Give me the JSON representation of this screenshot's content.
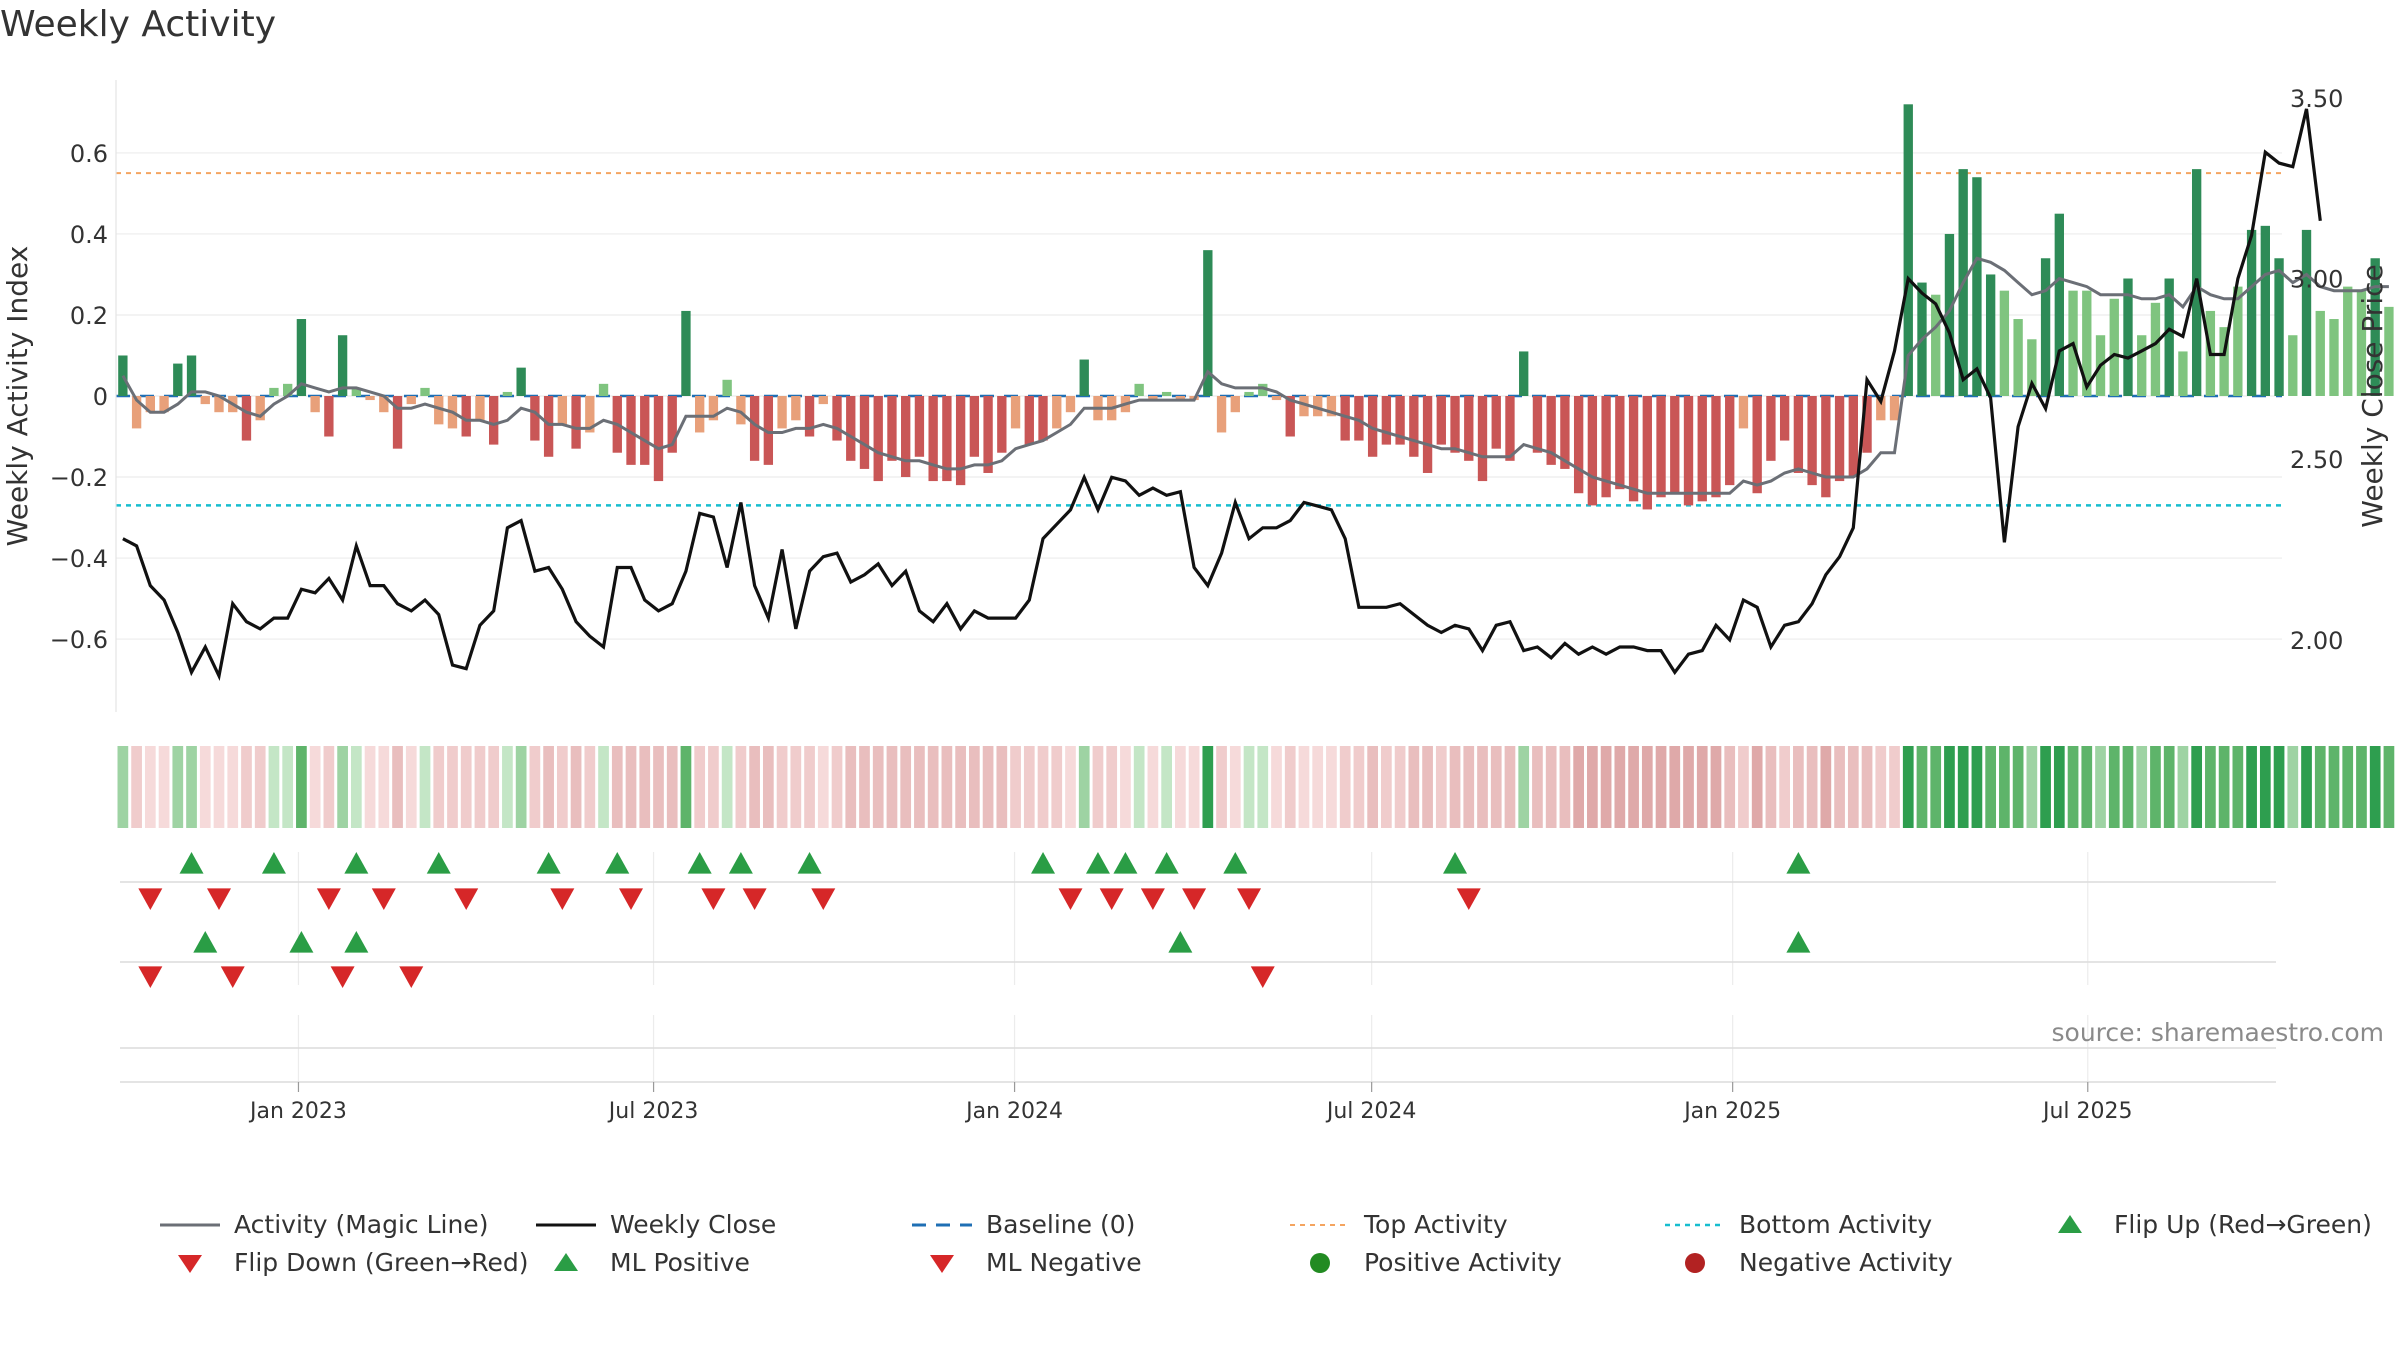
{
  "title": "Weekly Activity",
  "source": "source: sharemaestro.com",
  "colors": {
    "pos_strong": "#2e8b57",
    "pos_light": "#7fc47f",
    "neg_strong": "#c95656",
    "neg_light": "#e8a07a",
    "magic": "#6b6f76",
    "close": "#111111",
    "baseline": "#1f6fb4",
    "top": "#f4a460",
    "bottom": "#17becf",
    "up": "#2a9d45",
    "down": "#d62728",
    "pos_dot": "#228b22",
    "neg_dot": "#b22222"
  },
  "chart_data": {
    "type": "bar",
    "title": "Weekly Activity",
    "ylabel": "Weekly Activity Index",
    "y2label": "Weekly Close Price",
    "ylim": [
      -0.78,
      0.78
    ],
    "y2lim": [
      1.8,
      3.55
    ],
    "yticks": [
      0.6,
      0.4,
      0.2,
      0,
      -0.2,
      -0.4,
      -0.6
    ],
    "ytick_labels": [
      "0.6",
      "0.4",
      "0.2",
      "0",
      "−0.2",
      "−0.4",
      "−0.6"
    ],
    "y2ticks": [
      3.5,
      3.0,
      2.5,
      2.0
    ],
    "y2tick_labels": [
      "3.50",
      "3.00",
      "2.50",
      "2.00"
    ],
    "x_start": "2022-09-30",
    "x_end": "2025-10-08",
    "xticks": [
      {
        "date": "2023-01-01",
        "label": "Jan 2023"
      },
      {
        "date": "2023-07-01",
        "label": "Jul 2023"
      },
      {
        "date": "2024-01-01",
        "label": "Jan 2024"
      },
      {
        "date": "2024-07-01",
        "label": "Jul 2024"
      },
      {
        "date": "2025-01-01",
        "label": "Jan 2025"
      },
      {
        "date": "2025-07-01",
        "label": "Jul 2025"
      }
    ],
    "top_activity": 0.55,
    "bottom_activity": -0.27,
    "activity": [
      0.1,
      -0.08,
      -0.04,
      -0.04,
      0.08,
      0.1,
      -0.02,
      -0.04,
      -0.04,
      -0.11,
      -0.06,
      0.02,
      0.03,
      0.19,
      -0.04,
      -0.1,
      0.15,
      0.02,
      -0.01,
      -0.04,
      -0.13,
      -0.02,
      0.02,
      -0.07,
      -0.08,
      -0.1,
      -0.06,
      -0.12,
      0.01,
      0.07,
      -0.11,
      -0.15,
      -0.07,
      -0.13,
      -0.09,
      0.03,
      -0.14,
      -0.17,
      -0.17,
      -0.21,
      -0.14,
      0.21,
      -0.09,
      -0.06,
      0.04,
      -0.07,
      -0.16,
      -0.17,
      -0.08,
      -0.06,
      -0.1,
      -0.02,
      -0.11,
      -0.16,
      -0.18,
      -0.21,
      -0.16,
      -0.2,
      -0.15,
      -0.21,
      -0.21,
      -0.22,
      -0.15,
      -0.19,
      -0.14,
      -0.08,
      -0.12,
      -0.11,
      -0.08,
      -0.04,
      0.09,
      -0.06,
      -0.06,
      -0.04,
      0.03,
      -0.01,
      0.01,
      -0.01,
      -0.01,
      0.36,
      -0.09,
      -0.04,
      0.01,
      0.03,
      -0.01,
      -0.1,
      -0.05,
      -0.05,
      -0.05,
      -0.11,
      -0.11,
      -0.15,
      -0.12,
      -0.12,
      -0.15,
      -0.19,
      -0.12,
      -0.14,
      -0.16,
      -0.21,
      -0.13,
      -0.16,
      0.11,
      -0.14,
      -0.17,
      -0.18,
      -0.24,
      -0.27,
      -0.25,
      -0.23,
      -0.26,
      -0.28,
      -0.25,
      -0.24,
      -0.27,
      -0.26,
      -0.25,
      -0.22,
      -0.08,
      -0.24,
      -0.16,
      -0.11,
      -0.19,
      -0.22,
      -0.25,
      -0.21,
      -0.2,
      -0.14,
      -0.06,
      -0.06,
      0.72,
      0.28,
      0.25,
      0.4,
      0.56,
      0.54,
      0.3,
      0.26,
      0.19,
      0.14,
      0.34,
      0.45,
      0.26,
      0.26,
      0.15,
      0.24,
      0.29,
      0.15,
      0.23,
      0.29,
      0.11,
      0.56,
      0.21,
      0.17,
      0.27,
      0.41,
      0.42,
      0.34,
      0.15,
      0.41,
      0.21,
      0.19,
      0.27,
      0.26,
      0.34,
      0.22
    ],
    "magic_line": [
      0.05,
      -0.01,
      -0.04,
      -0.04,
      -0.02,
      0.01,
      0.01,
      0.0,
      -0.02,
      -0.04,
      -0.05,
      -0.02,
      0.0,
      0.03,
      0.02,
      0.01,
      0.02,
      0.02,
      0.01,
      0.0,
      -0.03,
      -0.03,
      -0.02,
      -0.03,
      -0.04,
      -0.06,
      -0.06,
      -0.07,
      -0.06,
      -0.03,
      -0.04,
      -0.07,
      -0.07,
      -0.08,
      -0.08,
      -0.06,
      -0.07,
      -0.09,
      -0.11,
      -0.13,
      -0.12,
      -0.05,
      -0.05,
      -0.05,
      -0.03,
      -0.04,
      -0.07,
      -0.09,
      -0.09,
      -0.08,
      -0.08,
      -0.07,
      -0.08,
      -0.1,
      -0.12,
      -0.14,
      -0.15,
      -0.16,
      -0.16,
      -0.17,
      -0.18,
      -0.18,
      -0.17,
      -0.17,
      -0.16,
      -0.13,
      -0.12,
      -0.11,
      -0.09,
      -0.07,
      -0.03,
      -0.03,
      -0.03,
      -0.02,
      -0.01,
      -0.01,
      -0.01,
      -0.01,
      -0.01,
      0.06,
      0.03,
      0.02,
      0.02,
      0.02,
      0.01,
      -0.01,
      -0.02,
      -0.03,
      -0.04,
      -0.05,
      -0.06,
      -0.08,
      -0.09,
      -0.1,
      -0.11,
      -0.12,
      -0.13,
      -0.13,
      -0.14,
      -0.15,
      -0.15,
      -0.15,
      -0.12,
      -0.13,
      -0.14,
      -0.16,
      -0.18,
      -0.2,
      -0.21,
      -0.22,
      -0.23,
      -0.24,
      -0.24,
      -0.24,
      -0.24,
      -0.24,
      -0.24,
      -0.24,
      -0.21,
      -0.22,
      -0.21,
      -0.19,
      -0.18,
      -0.19,
      -0.2,
      -0.2,
      -0.2,
      -0.18,
      -0.14,
      -0.14,
      0.1,
      0.14,
      0.17,
      0.21,
      0.28,
      0.34,
      0.33,
      0.31,
      0.28,
      0.25,
      0.26,
      0.29,
      0.28,
      0.27,
      0.25,
      0.25,
      0.25,
      0.24,
      0.24,
      0.25,
      0.22,
      0.27,
      0.25,
      0.24,
      0.24,
      0.27,
      0.3,
      0.31,
      0.28,
      0.3,
      0.27,
      0.26,
      0.26,
      0.26,
      0.27,
      0.27
    ],
    "close": [
      2.28,
      2.26,
      2.15,
      2.11,
      2.02,
      1.91,
      1.98,
      1.9,
      2.1,
      2.05,
      2.03,
      2.06,
      2.06,
      2.14,
      2.13,
      2.17,
      2.11,
      2.26,
      2.15,
      2.15,
      2.1,
      2.08,
      2.11,
      2.07,
      1.93,
      1.92,
      2.04,
      2.08,
      2.31,
      2.33,
      2.19,
      2.2,
      2.14,
      2.05,
      2.01,
      1.98,
      2.2,
      2.2,
      2.11,
      2.08,
      2.1,
      2.19,
      2.35,
      2.34,
      2.2,
      2.38,
      2.15,
      2.06,
      2.25,
      2.03,
      2.19,
      2.23,
      2.24,
      2.16,
      2.18,
      2.21,
      2.15,
      2.19,
      2.08,
      2.05,
      2.1,
      2.03,
      2.08,
      2.06,
      2.06,
      2.06,
      2.11,
      2.28,
      2.32,
      2.36,
      2.45,
      2.36,
      2.45,
      2.44,
      2.4,
      2.42,
      2.4,
      2.41,
      2.2,
      2.15,
      2.24,
      2.38,
      2.28,
      2.31,
      2.31,
      2.33,
      2.38,
      2.37,
      2.36,
      2.28,
      2.09,
      2.09,
      2.09,
      2.1,
      2.07,
      2.04,
      2.02,
      2.04,
      2.03,
      1.97,
      2.04,
      2.05,
      1.97,
      1.98,
      1.95,
      1.99,
      1.96,
      1.98,
      1.96,
      1.98,
      1.98,
      1.97,
      1.97,
      1.91,
      1.96,
      1.97,
      2.04,
      2.0,
      2.11,
      2.09,
      1.98,
      2.04,
      2.05,
      2.1,
      2.18,
      2.23,
      2.31,
      2.72,
      2.66,
      2.8,
      3.0,
      2.96,
      2.93,
      2.85,
      2.72,
      2.75,
      2.67,
      2.27,
      2.59,
      2.71,
      2.64,
      2.8,
      2.82,
      2.7,
      2.76,
      2.79,
      2.78,
      2.8,
      2.82,
      2.86,
      2.84,
      3.0,
      2.79,
      2.79,
      3.0,
      3.12,
      3.35,
      3.32,
      3.31,
      3.47,
      3.16
    ],
    "flip_up_weeks": [
      5,
      11,
      17,
      23,
      31,
      36,
      42,
      45,
      50,
      67,
      71,
      73,
      76,
      81,
      97,
      122
    ],
    "flip_down_weeks": [
      2,
      7,
      15,
      19,
      25,
      32,
      37,
      43,
      46,
      51,
      69,
      72,
      75,
      78,
      82,
      98
    ],
    "ml_positive_weeks": [
      6,
      13,
      17,
      77,
      122
    ],
    "ml_negative_weeks": [
      2,
      8,
      16,
      21,
      83
    ],
    "strip_weeks_note": "week 0 = 2022-09-30, weekly spacing",
    "legend": [
      "Activity (Magic Line)",
      "Weekly Close",
      "Baseline (0)",
      "Top Activity",
      "Bottom Activity",
      "Flip Up (Red→Green)",
      "Flip Down (Green→Red)",
      "ML Positive",
      "ML Negative",
      "Positive Activity",
      "Negative Activity"
    ]
  }
}
